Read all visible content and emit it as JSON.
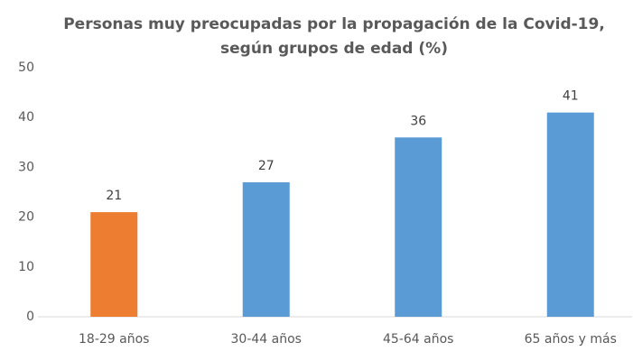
{
  "chart_data": {
    "type": "bar",
    "title": [
      "Personas muy preocupadas por la propagación de la Covid-19,",
      "según grupos de edad (%)"
    ],
    "categories": [
      "18-29 años",
      "30-44 años",
      "45-64 años",
      "65 años y más"
    ],
    "values": [
      21,
      27,
      36,
      41
    ],
    "colors": [
      "#ed7d31",
      "#5b9bd5",
      "#5b9bd5",
      "#5b9bd5"
    ],
    "ylim": [
      0,
      50
    ],
    "yticks": [
      0,
      10,
      20,
      30,
      40,
      50
    ],
    "grid": false
  }
}
